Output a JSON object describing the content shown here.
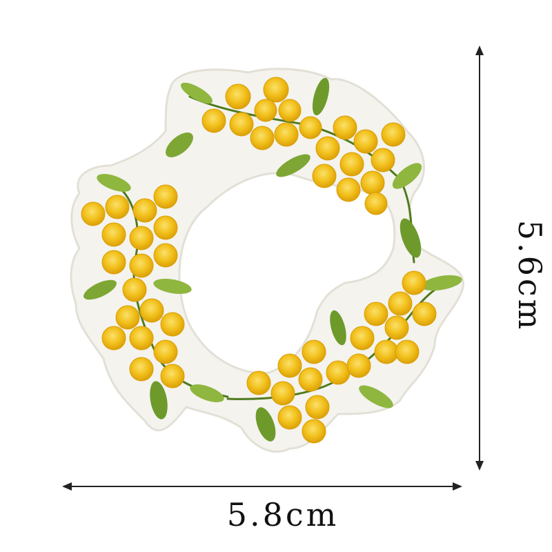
{
  "dimensions": {
    "width_label": "5.8cm",
    "height_label": "5.6cm"
  },
  "colors": {
    "felt": "#f4f3ee",
    "felt_edge": "#e2e0d6",
    "flower_dark": "#e3a80c",
    "flower_mid": "#f2c11d",
    "flower_light": "#fbe06a",
    "leaf_dark": "#5f8a22",
    "leaf_light": "#9cc04a",
    "stem": "#4f7a1c",
    "arrow": "#222222"
  },
  "icons": [
    "embroidered-mimosa-wreath",
    "width-arrow",
    "height-arrow"
  ]
}
